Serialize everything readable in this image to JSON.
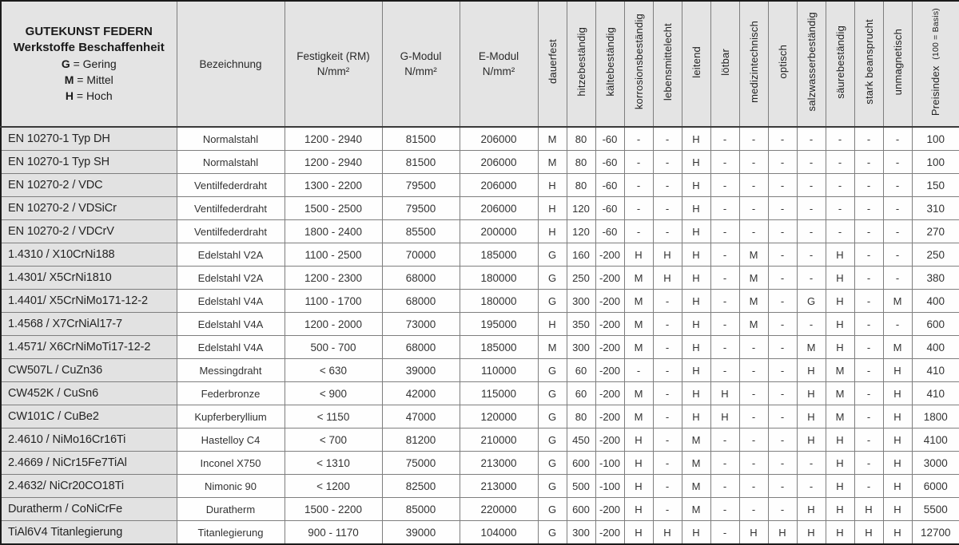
{
  "table": {
    "title_block": {
      "line1": "GUTEKUNST FEDERN",
      "line2": "Werkstoffe Beschaffenheit",
      "legend": [
        {
          "key": "G",
          "label": "= Gering"
        },
        {
          "key": "M",
          "label": "= Mittel"
        },
        {
          "key": "H",
          "label": "= Hoch"
        }
      ]
    },
    "columns": {
      "bezeichnung": "Bezeichnung",
      "festigkeit_line1": "Festigkeit (RM)",
      "festigkeit_line2": "N/mm²",
      "gmodul_line1": "G-Modul",
      "gmodul_line2": "N/mm²",
      "emodul_line1": "E-Modul",
      "emodul_line2": "N/mm²",
      "vertical": [
        "dauerfest",
        "hitzebeständig",
        "kältebeständig",
        "korrosionsbeständig",
        "lebensmittelecht",
        "leitend",
        "lötbar",
        "medizintechnisch",
        "optisch",
        "salzwasserbeständig",
        "säurebeständig",
        "stark beansprucht",
        "unmagnetisch"
      ],
      "preisindex_main": "Preisindex",
      "preisindex_sub": "(100 = Basis)"
    },
    "rows": [
      {
        "name": "EN 10270-1 Typ DH",
        "bezeichnung": "Normalstahl",
        "festigkeit": "1200 - 2940",
        "g_modul": "81500",
        "e_modul": "206000",
        "props": [
          "M",
          "80",
          "-60",
          "-",
          "-",
          "H",
          "-",
          "-",
          "-",
          "-",
          "-",
          "-",
          "-"
        ],
        "preis": "100"
      },
      {
        "name": "EN 10270-1 Typ SH",
        "bezeichnung": "Normalstahl",
        "festigkeit": "1200 - 2940",
        "g_modul": "81500",
        "e_modul": "206000",
        "props": [
          "M",
          "80",
          "-60",
          "-",
          "-",
          "H",
          "-",
          "-",
          "-",
          "-",
          "-",
          "-",
          "-"
        ],
        "preis": "100"
      },
      {
        "name": "EN 10270-2 / VDC",
        "bezeichnung": "Ventilfederdraht",
        "festigkeit": "1300 - 2200",
        "g_modul": "79500",
        "e_modul": "206000",
        "props": [
          "H",
          "80",
          "-60",
          "-",
          "-",
          "H",
          "-",
          "-",
          "-",
          "-",
          "-",
          "-",
          "-"
        ],
        "preis": "150"
      },
      {
        "name": "EN 10270-2 / VDSiCr",
        "bezeichnung": "Ventilfederdraht",
        "festigkeit": "1500 - 2500",
        "g_modul": "79500",
        "e_modul": "206000",
        "props": [
          "H",
          "120",
          "-60",
          "-",
          "-",
          "H",
          "-",
          "-",
          "-",
          "-",
          "-",
          "-",
          "-"
        ],
        "preis": "310"
      },
      {
        "name": "EN 10270-2 / VDCrV",
        "bezeichnung": "Ventilfederdraht",
        "festigkeit": "1800 - 2400",
        "g_modul": "85500",
        "e_modul": "200000",
        "props": [
          "H",
          "120",
          "-60",
          "-",
          "-",
          "H",
          "-",
          "-",
          "-",
          "-",
          "-",
          "-",
          "-"
        ],
        "preis": "270"
      },
      {
        "name": "1.4310 / X10CrNi188",
        "bezeichnung": "Edelstahl V2A",
        "festigkeit": "1100 - 2500",
        "g_modul": "70000",
        "e_modul": "185000",
        "props": [
          "G",
          "160",
          "-200",
          "H",
          "H",
          "H",
          "-",
          "M",
          "-",
          "-",
          "H",
          "-",
          "-"
        ],
        "preis": "250"
      },
      {
        "name": "1.4301/ X5CrNi1810",
        "bezeichnung": "Edelstahl V2A",
        "festigkeit": "1200 - 2300",
        "g_modul": "68000",
        "e_modul": "180000",
        "props": [
          "G",
          "250",
          "-200",
          "M",
          "H",
          "H",
          "-",
          "M",
          "-",
          "-",
          "H",
          "-",
          "-"
        ],
        "preis": "380"
      },
      {
        "name": "1.4401/ X5CrNiMo171-12-2",
        "bezeichnung": "Edelstahl V4A",
        "festigkeit": "1100 - 1700",
        "g_modul": "68000",
        "e_modul": "180000",
        "props": [
          "G",
          "300",
          "-200",
          "M",
          "-",
          "H",
          "-",
          "M",
          "-",
          "G",
          "H",
          "-",
          "M"
        ],
        "preis": "400"
      },
      {
        "name": "1.4568 / X7CrNiAl17-7",
        "bezeichnung": "Edelstahl V4A",
        "festigkeit": "1200 - 2000",
        "g_modul": "73000",
        "e_modul": "195000",
        "props": [
          "H",
          "350",
          "-200",
          "M",
          "-",
          "H",
          "-",
          "M",
          "-",
          "-",
          "H",
          "-",
          "-"
        ],
        "preis": "600"
      },
      {
        "name": "1.4571/ X6CrNiMoTi17-12-2",
        "bezeichnung": "Edelstahl V4A",
        "festigkeit": "500 - 700",
        "g_modul": "68000",
        "e_modul": "185000",
        "props": [
          "M",
          "300",
          "-200",
          "M",
          "-",
          "H",
          "-",
          "-",
          "-",
          "M",
          "H",
          "-",
          "M"
        ],
        "preis": "400"
      },
      {
        "name": "CW507L / CuZn36",
        "bezeichnung": "Messingdraht",
        "festigkeit": "< 630",
        "g_modul": "39000",
        "e_modul": "110000",
        "props": [
          "G",
          "60",
          "-200",
          "-",
          "-",
          "H",
          "-",
          "-",
          "-",
          "H",
          "M",
          "-",
          "H"
        ],
        "preis": "410"
      },
      {
        "name": "CW452K / CuSn6",
        "bezeichnung": "Federbronze",
        "festigkeit": "< 900",
        "g_modul": "42000",
        "e_modul": "115000",
        "props": [
          "G",
          "60",
          "-200",
          "M",
          "-",
          "H",
          "H",
          "-",
          "-",
          "H",
          "M",
          "-",
          "H"
        ],
        "preis": "410"
      },
      {
        "name": "CW101C / CuBe2",
        "bezeichnung": "Kupferberyllium",
        "festigkeit": "< 1150",
        "g_modul": "47000",
        "e_modul": "120000",
        "props": [
          "G",
          "80",
          "-200",
          "M",
          "-",
          "H",
          "H",
          "-",
          "-",
          "H",
          "M",
          "-",
          "H"
        ],
        "preis": "1800"
      },
      {
        "name": "2.4610 / NiMo16Cr16Ti",
        "bezeichnung": "Hastelloy C4",
        "festigkeit": "< 700",
        "g_modul": "81200",
        "e_modul": "210000",
        "props": [
          "G",
          "450",
          "-200",
          "H",
          "-",
          "M",
          "-",
          "-",
          "-",
          "H",
          "H",
          "-",
          "H"
        ],
        "preis": "4100"
      },
      {
        "name": "2.4669 / NiCr15Fe7TiAl",
        "bezeichnung": "Inconel X750",
        "festigkeit": "< 1310",
        "g_modul": "75000",
        "e_modul": "213000",
        "props": [
          "G",
          "600",
          "-100",
          "H",
          "-",
          "M",
          "-",
          "-",
          "-",
          "-",
          "H",
          "-",
          "H"
        ],
        "preis": "3000"
      },
      {
        "name": "2.4632/ NiCr20CO18Ti",
        "bezeichnung": "Nimonic 90",
        "festigkeit": "< 1200",
        "g_modul": "82500",
        "e_modul": "213000",
        "props": [
          "G",
          "500",
          "-100",
          "H",
          "-",
          "M",
          "-",
          "-",
          "-",
          "-",
          "H",
          "-",
          "H"
        ],
        "preis": "6000"
      },
      {
        "name": "Duratherm / CoNiCrFe",
        "bezeichnung": "Duratherm",
        "festigkeit": "1500 - 2200",
        "g_modul": "85000",
        "e_modul": "220000",
        "props": [
          "G",
          "600",
          "-200",
          "H",
          "-",
          "M",
          "-",
          "-",
          "-",
          "H",
          "H",
          "H",
          "H"
        ],
        "preis": "5500"
      },
      {
        "name": "TiAl6V4 Titanlegierung",
        "bezeichnung": "Titanlegierung",
        "festigkeit": "900 - 1170",
        "g_modul": "39000",
        "e_modul": "104000",
        "props": [
          "G",
          "300",
          "-200",
          "H",
          "H",
          "H",
          "-",
          "H",
          "H",
          "H",
          "H",
          "H",
          "H"
        ],
        "preis": "12700"
      }
    ]
  },
  "colors": {
    "header_bg": "#e4e4e4",
    "name_col_bg": "#e2e2e2",
    "cell_bg": "#fefefe",
    "grid_line": "#7e7e7e",
    "frame": "#1b1b1b",
    "text": "#242424"
  }
}
